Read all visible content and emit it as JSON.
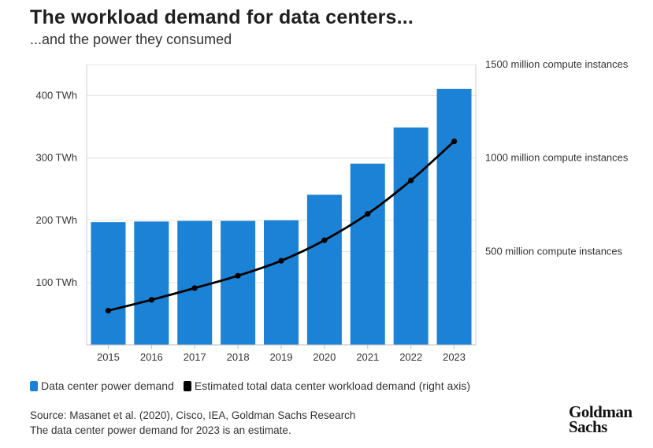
{
  "header": {
    "title": "The workload demand for data centers...",
    "subtitle": "...and the power they consumed"
  },
  "legend": {
    "bars_label": "Data center power demand",
    "line_label": "Estimated total data center workload demand (right axis)"
  },
  "footer": {
    "source": "Source: Masanet et al. (2020), Cisco, IEA, Goldman Sachs Research",
    "note": "The data center power demand for 2023 is an estimate."
  },
  "logo": {
    "line1": "Goldman",
    "line2": "Sachs"
  },
  "colors": {
    "bar": "#1b82d6",
    "line": "#000000",
    "grid": "#e3e3e3"
  },
  "chart_data": {
    "type": "bar",
    "categories": [
      "2015",
      "2016",
      "2017",
      "2018",
      "2019",
      "2020",
      "2021",
      "2022",
      "2023"
    ],
    "series": [
      {
        "name": "Data center power demand",
        "type": "bar",
        "axis": "left",
        "values": [
          197,
          198,
          199,
          199,
          200,
          241,
          291,
          349,
          411
        ]
      },
      {
        "name": "Estimated total data center workload demand (right axis)",
        "type": "line",
        "axis": "right",
        "values": [
          183,
          241,
          304,
          370,
          450,
          560,
          701,
          880,
          1089
        ]
      }
    ],
    "y_left": {
      "ticks": [
        100,
        200,
        300,
        400
      ],
      "tick_labels": [
        "100 TWh",
        "200 TWh",
        "300 TWh",
        "400 TWh"
      ],
      "range": [
        0,
        450
      ]
    },
    "y_right": {
      "ticks": [
        500,
        1000,
        1500
      ],
      "tick_labels": [
        "500 million compute instances",
        "1000 million compute instances",
        "1500 million compute instances"
      ],
      "range": [
        0,
        1500
      ]
    },
    "grid": true,
    "legend_position": "bottom"
  }
}
